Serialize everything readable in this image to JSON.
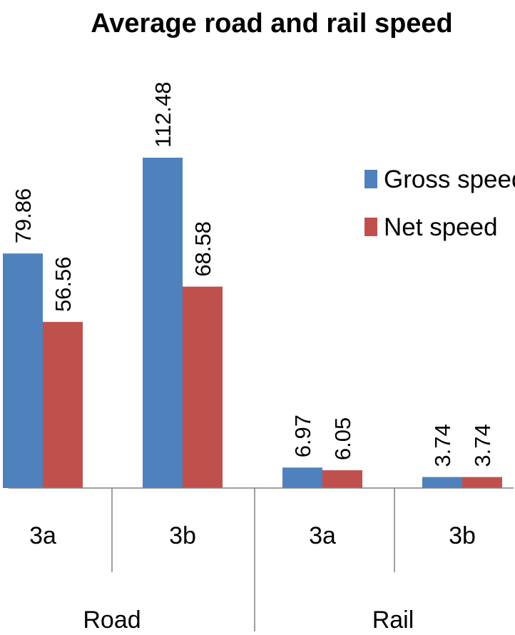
{
  "chart_data": {
    "type": "bar",
    "title": "Average road and rail speed",
    "groups": [
      "Road",
      "Rail"
    ],
    "categories": [
      "3a",
      "3b",
      "3a",
      "3b"
    ],
    "category_groups": [
      0,
      0,
      1,
      1
    ],
    "series": [
      {
        "name": "Gross speed",
        "color": "#4f81bd",
        "values": [
          79.86,
          112.48,
          6.97,
          3.74
        ],
        "labels": [
          "79.86",
          "112.48",
          "6.97",
          "3.74"
        ]
      },
      {
        "name": "Net speed",
        "color": "#c0504d",
        "values": [
          56.56,
          68.58,
          6.05,
          3.74
        ],
        "labels": [
          "56.56",
          "68.58",
          "6.05",
          "3.74"
        ]
      }
    ],
    "ylim": [
      0,
      112.48
    ],
    "grid": false,
    "legend": "right",
    "xlabel": "",
    "ylabel": ""
  }
}
